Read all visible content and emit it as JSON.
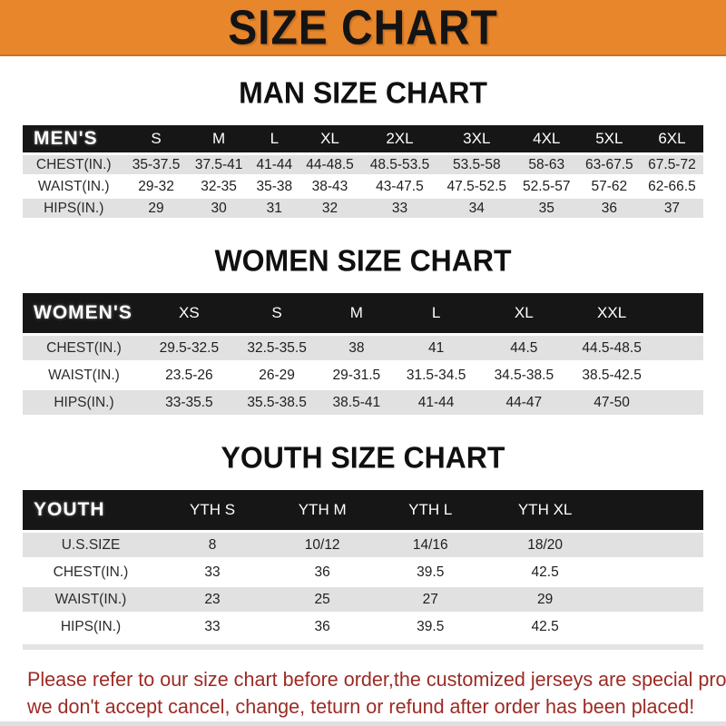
{
  "banner": {
    "title": "SIZE CHART",
    "bg_color": "#E8862C",
    "text_color": "#141414"
  },
  "tables": [
    {
      "heading": "MAN SIZE CHART",
      "header_label": "MEN'S",
      "columns": [
        "S",
        "M",
        "L",
        "XL",
        "2XL",
        "3XL",
        "4XL",
        "5XL",
        "6XL"
      ],
      "rows": [
        {
          "label": "CHEST(IN.)",
          "values": [
            "35-37.5",
            "37.5-41",
            "41-44",
            "44-48.5",
            "48.5-53.5",
            "53.5-58",
            "58-63",
            "63-67.5",
            "67.5-72"
          ]
        },
        {
          "label": "WAIST(IN.)",
          "values": [
            "29-32",
            "32-35",
            "35-38",
            "38-43",
            "43-47.5",
            "47.5-52.5",
            "52.5-57",
            "57-62",
            "62-66.5"
          ]
        },
        {
          "label": "HIPS(IN.)",
          "values": [
            "29",
            "30",
            "31",
            "32",
            "33",
            "34",
            "35",
            "36",
            "37"
          ]
        }
      ]
    },
    {
      "heading": "WOMEN SIZE CHART",
      "header_label": "WOMEN'S",
      "columns": [
        "XS",
        "S",
        "M",
        "L",
        "XL",
        "XXL"
      ],
      "rows": [
        {
          "label": "CHEST(IN.)",
          "values": [
            "29.5-32.5",
            "32.5-35.5",
            "38",
            "41",
            "44.5",
            "44.5-48.5"
          ]
        },
        {
          "label": "WAIST(IN.)",
          "values": [
            "23.5-26",
            "26-29",
            "29-31.5",
            "31.5-34.5",
            "34.5-38.5",
            "38.5-42.5"
          ]
        },
        {
          "label": "HIPS(IN.)",
          "values": [
            "33-35.5",
            "35.5-38.5",
            "38.5-41",
            "41-44",
            "44-47",
            "47-50"
          ]
        }
      ]
    },
    {
      "heading": "YOUTH SIZE CHART",
      "header_label": "YOUTH",
      "columns": [
        "YTH S",
        "YTH M",
        "YTH L",
        "YTH XL"
      ],
      "rows": [
        {
          "label": "U.S.SIZE",
          "values": [
            "8",
            "10/12",
            "14/16",
            "18/20"
          ]
        },
        {
          "label": "CHEST(IN.)",
          "values": [
            "33",
            "36",
            "39.5",
            "42.5"
          ]
        },
        {
          "label": "WAIST(IN.)",
          "values": [
            "23",
            "25",
            "27",
            "29"
          ]
        },
        {
          "label": "HIPS(IN.)",
          "values": [
            "33",
            "36",
            "39.5",
            "42.5"
          ]
        }
      ]
    }
  ],
  "footer": {
    "line1": "Please refer to our size chart before order,the customized jerseys are special products,",
    "line2": "we don't accept cancel, change, teturn or refund after order has been placed!",
    "text_color": "#9C2B24"
  },
  "colors": {
    "banner_orange": "#E8862C",
    "table_header_black": "#161616",
    "row_stripe_gray": "#E1E1E1",
    "warning_red": "#9C2B24"
  }
}
